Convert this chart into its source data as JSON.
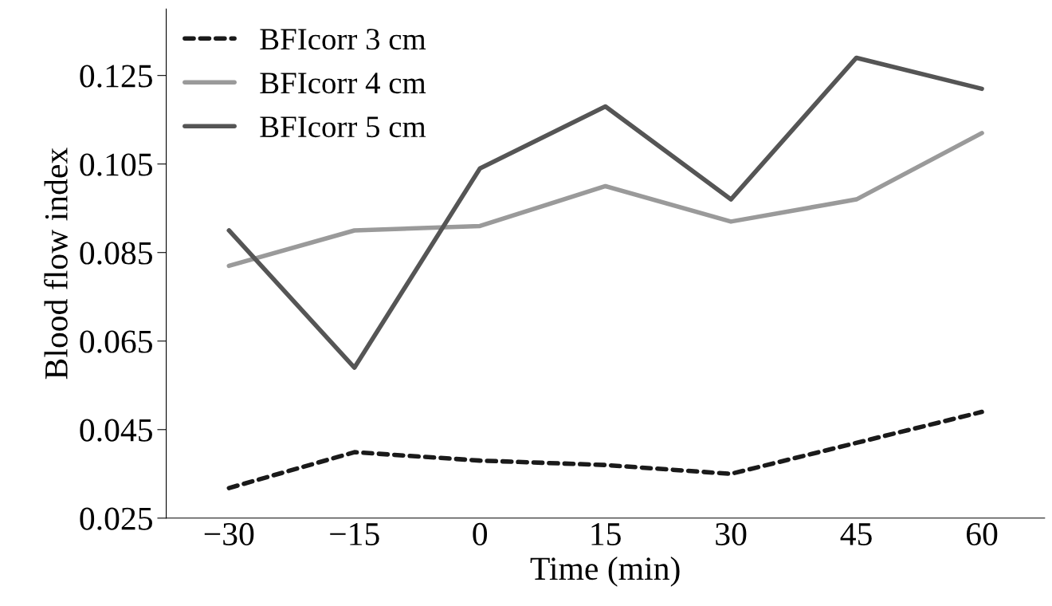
{
  "chart_data": {
    "type": "line",
    "xlabel": "Time (min)",
    "ylabel": "Blood flow index",
    "categories": [
      "−30",
      "−15",
      "0",
      "15",
      "30",
      "45",
      "60"
    ],
    "series": [
      {
        "name": "BFIcorr 3 cm",
        "color": "#1a1a1a",
        "line_style": "dashed",
        "values": [
          0.0318,
          0.0399,
          0.038,
          0.037,
          0.035,
          0.042,
          0.049
        ]
      },
      {
        "name": "BFIcorr 4 cm",
        "color": "#9a9a9a",
        "line_style": "solid",
        "values": [
          0.082,
          0.09,
          0.091,
          0.1,
          0.092,
          0.097,
          0.112
        ]
      },
      {
        "name": "BFIcorr 5 cm",
        "color": "#555555",
        "line_style": "solid",
        "values": [
          0.09,
          0.059,
          0.104,
          0.118,
          0.097,
          0.129,
          0.122
        ]
      }
    ],
    "ylim": [
      0.025,
      0.14
    ],
    "yticks": [
      0.025,
      0.045,
      0.065,
      0.085,
      0.105,
      0.125
    ],
    "grid": false,
    "legend": "top left",
    "marker": "none"
  }
}
